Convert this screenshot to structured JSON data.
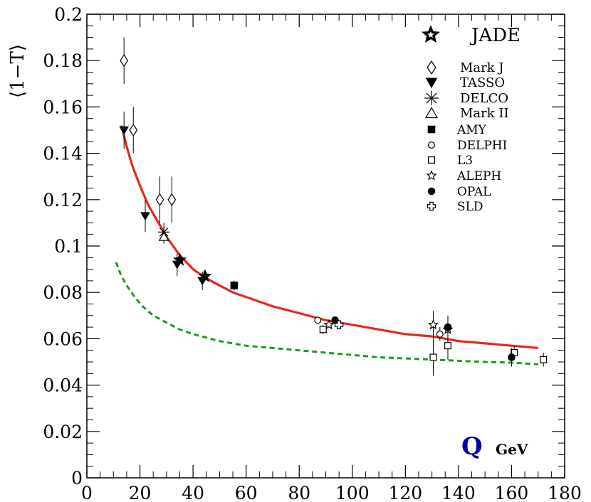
{
  "chart_data": {
    "type": "scatter",
    "title": "",
    "xlabel_symbol": "Q",
    "xlabel_unit": "GeV",
    "ylabel": "⟨1−T⟩",
    "xlim": [
      0,
      180
    ],
    "ylim": [
      0,
      0.2
    ],
    "x_ticks": [
      "0",
      "20",
      "40",
      "60",
      "80",
      "100",
      "120",
      "140",
      "160",
      "180"
    ],
    "y_ticks": [
      "0",
      "0.02",
      "0.04",
      "0.06",
      "0.08",
      "0.1",
      "0.12",
      "0.14",
      "0.16",
      "0.18",
      "0.2"
    ],
    "grid": false,
    "legend_title": "JADE",
    "legend_position": "top-right",
    "series": [
      {
        "name": "Mark J",
        "marker": "diamond-open",
        "points": [
          {
            "x": 14,
            "y": 0.18,
            "err": 0.01
          },
          {
            "x": 17.5,
            "y": 0.15,
            "err": 0.01
          },
          {
            "x": 27.5,
            "y": 0.12,
            "err": 0.01
          },
          {
            "x": 32,
            "y": 0.12,
            "err": 0.01
          }
        ]
      },
      {
        "name": "TASSO",
        "marker": "triangle-down-filled",
        "points": [
          {
            "x": 14,
            "y": 0.15,
            "err": 0.008
          },
          {
            "x": 22,
            "y": 0.113,
            "err": 0.007
          },
          {
            "x": 34,
            "y": 0.092,
            "err": 0.005
          },
          {
            "x": 43.5,
            "y": 0.085,
            "err": 0.004
          }
        ]
      },
      {
        "name": "DELCO",
        "marker": "asterisk",
        "points": [
          {
            "x": 29,
            "y": 0.106,
            "err": 0.004
          }
        ]
      },
      {
        "name": "Mark II",
        "marker": "triangle-up-open",
        "points": [
          {
            "x": 29,
            "y": 0.104,
            "err": 0.003
          }
        ]
      },
      {
        "name": "AMY",
        "marker": "square-filled",
        "points": [
          {
            "x": 55.5,
            "y": 0.083,
            "err": 0.002
          }
        ]
      },
      {
        "name": "DELPHI",
        "marker": "circle-open",
        "points": [
          {
            "x": 87,
            "y": 0.068,
            "err": 0.001
          },
          {
            "x": 133,
            "y": 0.062,
            "err": 0.003
          }
        ]
      },
      {
        "name": "L3",
        "marker": "square-open",
        "points": [
          {
            "x": 89,
            "y": 0.064,
            "err": 0.002
          },
          {
            "x": 130.5,
            "y": 0.052,
            "err": 0.008
          },
          {
            "x": 136,
            "y": 0.057,
            "err": 0.006
          },
          {
            "x": 161,
            "y": 0.054,
            "err": 0.003
          },
          {
            "x": 172,
            "y": 0.051,
            "err": 0.003
          }
        ]
      },
      {
        "name": "ALEPH",
        "marker": "star-open",
        "points": [
          {
            "x": 91.2,
            "y": 0.066,
            "err": 0.001
          },
          {
            "x": 130.5,
            "y": 0.066,
            "err": 0.006
          },
          {
            "x": 136,
            "y": 0.064,
            "err": 0.004
          }
        ]
      },
      {
        "name": "OPAL",
        "marker": "circle-filled",
        "points": [
          {
            "x": 93.5,
            "y": 0.068,
            "err": 0.001
          },
          {
            "x": 136,
            "y": 0.065,
            "err": 0.005
          },
          {
            "x": 160,
            "y": 0.052,
            "err": 0.004
          }
        ]
      },
      {
        "name": "SLD",
        "marker": "cross-open",
        "points": [
          {
            "x": 95,
            "y": 0.066,
            "err": 0.002
          }
        ]
      },
      {
        "name": "JADE",
        "marker": "star-filled",
        "points": [
          {
            "x": 35,
            "y": 0.094,
            "err": 0.002
          },
          {
            "x": 44.5,
            "y": 0.087,
            "err": 0.002
          }
        ]
      }
    ],
    "curves": [
      {
        "style": "solid",
        "color": "#e8261c",
        "points": [
          [
            13,
            0.152
          ],
          [
            15,
            0.143
          ],
          [
            17,
            0.135
          ],
          [
            20,
            0.126
          ],
          [
            23,
            0.118
          ],
          [
            27,
            0.11
          ],
          [
            30,
            0.104
          ],
          [
            35,
            0.096
          ],
          [
            40,
            0.09
          ],
          [
            45,
            0.086
          ],
          [
            50,
            0.083
          ],
          [
            55,
            0.08
          ],
          [
            60,
            0.078
          ],
          [
            70,
            0.074
          ],
          [
            80,
            0.071
          ],
          [
            90,
            0.068
          ],
          [
            100,
            0.066
          ],
          [
            110,
            0.064
          ],
          [
            120,
            0.062
          ],
          [
            130,
            0.061
          ],
          [
            140,
            0.059
          ],
          [
            150,
            0.058
          ],
          [
            160,
            0.057
          ],
          [
            170,
            0.056
          ]
        ]
      },
      {
        "style": "dashed",
        "color": "#1a9a1a",
        "points": [
          [
            11,
            0.093
          ],
          [
            13,
            0.087
          ],
          [
            15,
            0.083
          ],
          [
            18,
            0.078
          ],
          [
            21,
            0.074
          ],
          [
            25,
            0.07
          ],
          [
            30,
            0.067
          ],
          [
            35,
            0.064
          ],
          [
            40,
            0.062
          ],
          [
            50,
            0.059
          ],
          [
            60,
            0.057
          ],
          [
            70,
            0.056
          ],
          [
            80,
            0.055
          ],
          [
            90,
            0.054
          ],
          [
            100,
            0.053
          ],
          [
            110,
            0.052
          ],
          [
            120,
            0.0515
          ],
          [
            130,
            0.051
          ],
          [
            140,
            0.0505
          ],
          [
            150,
            0.05
          ],
          [
            160,
            0.0497
          ],
          [
            170,
            0.049
          ]
        ]
      }
    ]
  }
}
